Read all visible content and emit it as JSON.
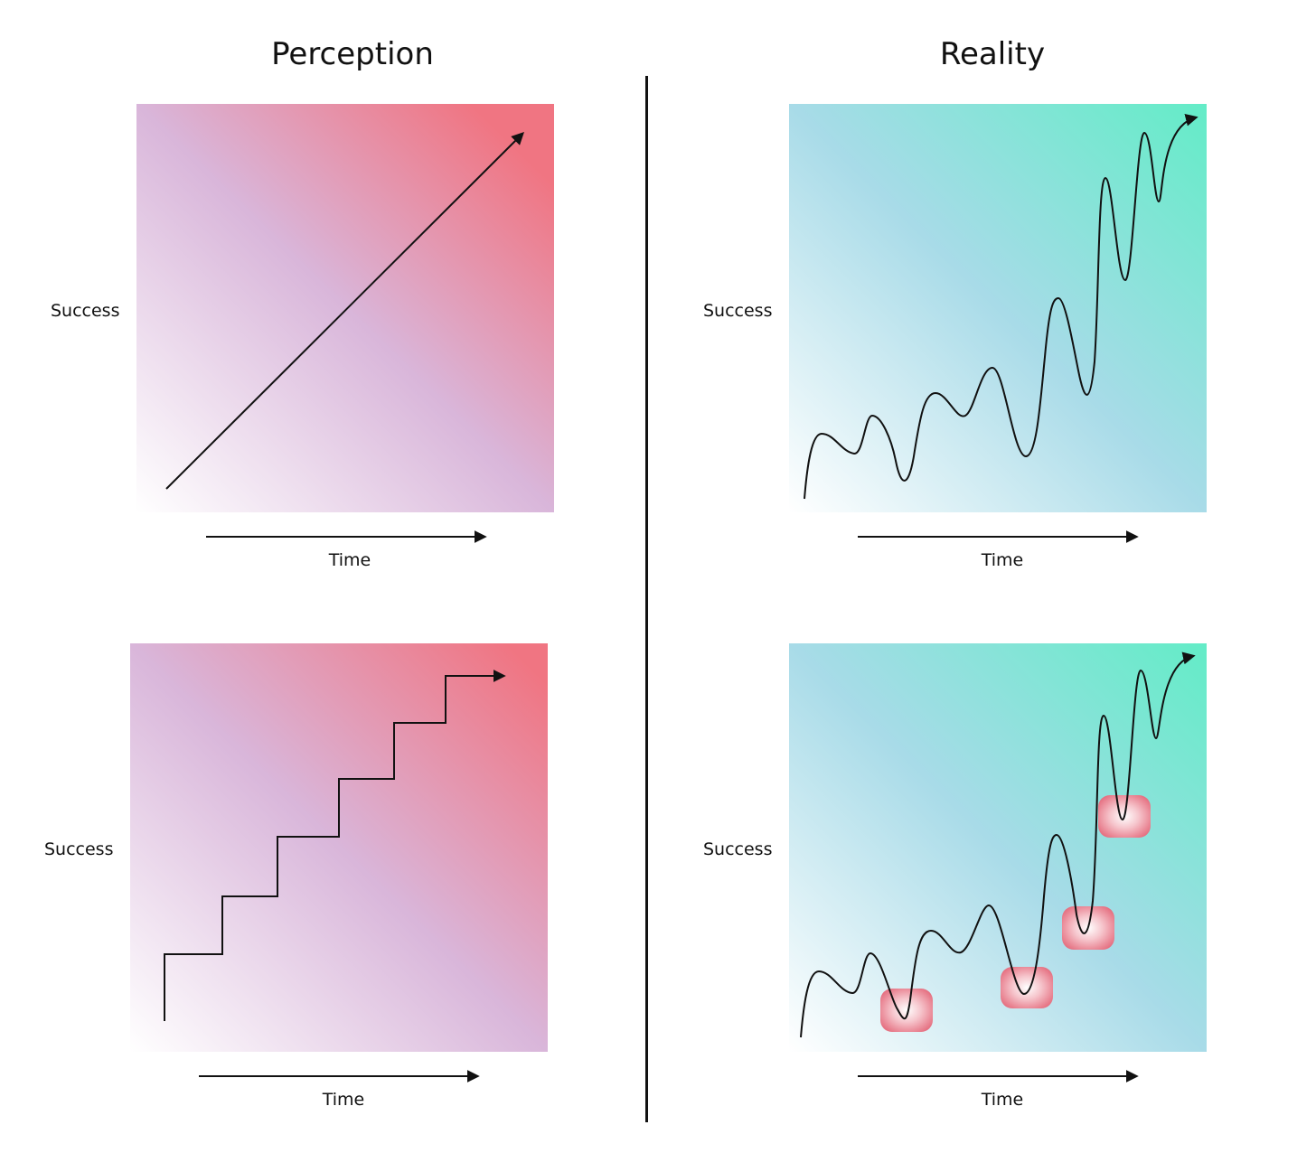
{
  "headings": {
    "left": "Perception",
    "right": "Reality"
  },
  "panels": {
    "perception_linear": {
      "ylabel": "Success",
      "xlabel": "Time"
    },
    "perception_steps": {
      "ylabel": "Success",
      "xlabel": "Time"
    },
    "reality_wavy": {
      "ylabel": "Success",
      "xlabel": "Time"
    },
    "reality_setbacks": {
      "ylabel": "Success",
      "xlabel": "Time"
    }
  },
  "colors": {
    "perception_start": "#ffffff",
    "perception_mid": "#d9b6da",
    "perception_end": "#f07582",
    "reality_start": "#ffffff",
    "reality_mid": "#a8dbe8",
    "reality_end": "#63ecc7",
    "highlight": "#e56f80",
    "line": "#111111"
  },
  "setback_highlights": 4
}
